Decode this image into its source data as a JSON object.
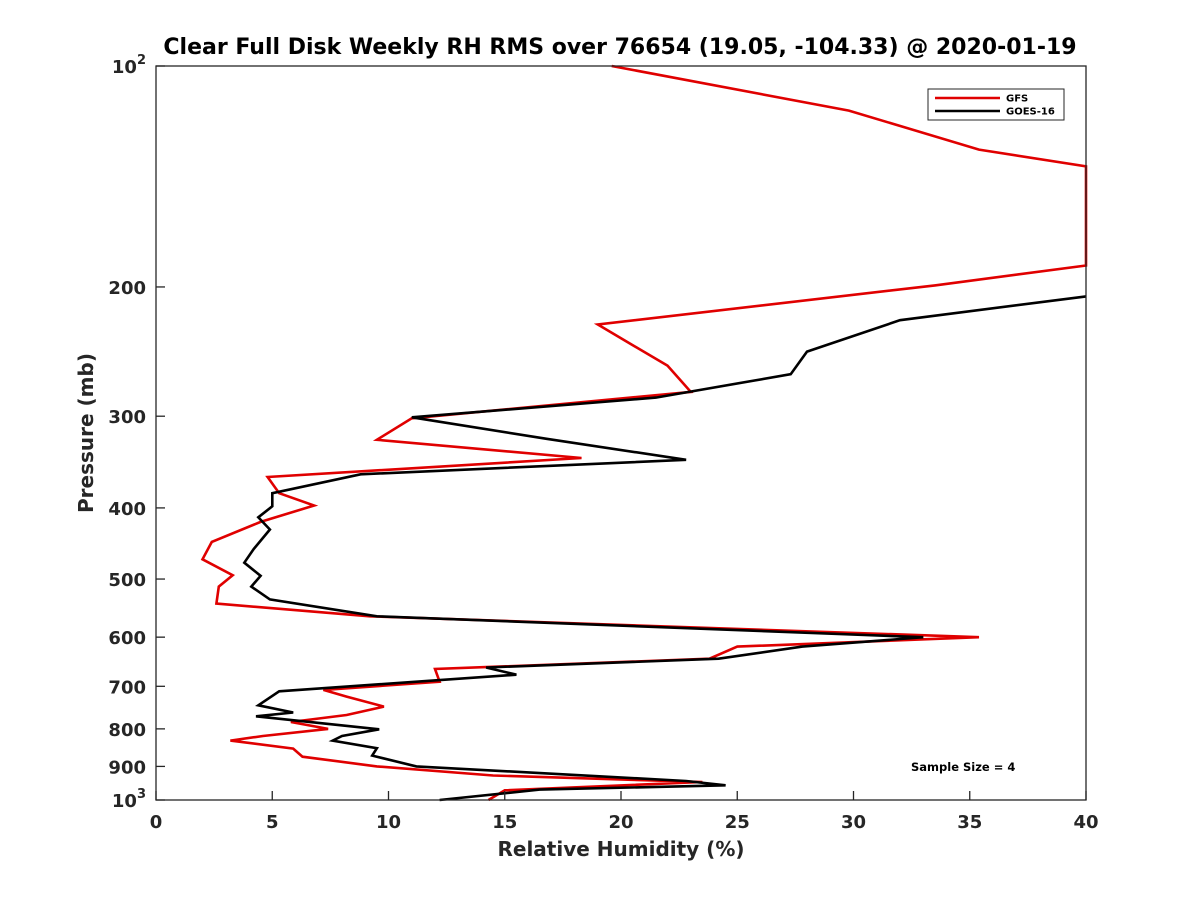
{
  "chart_data": {
    "type": "line",
    "title": "Clear Full Disk Weekly RH RMS over 76654 (19.05, -104.33) @ 2020-01-19",
    "xlabel": "Relative Humidity (%)",
    "ylabel": "Pressure (mb)",
    "xlim": [
      0,
      40
    ],
    "ylim": [
      100,
      1000
    ],
    "y_scale": "log",
    "y_reversed": true,
    "grid": false,
    "legend_position": "top-right",
    "x_ticks": [
      0,
      5,
      10,
      15,
      20,
      25,
      30,
      35,
      40
    ],
    "x_tick_labels": [
      "0",
      "5",
      "10",
      "15",
      "20",
      "25",
      "30",
      "35",
      "40"
    ],
    "y_ticks": [
      100,
      200,
      300,
      400,
      500,
      600,
      700,
      800,
      900,
      1000
    ],
    "y_tick_labels": [
      {
        "base": "10",
        "exp": "2"
      },
      {
        "base": "200",
        "exp": ""
      },
      {
        "base": "300",
        "exp": ""
      },
      {
        "base": "400",
        "exp": ""
      },
      {
        "base": "500",
        "exp": ""
      },
      {
        "base": "600",
        "exp": ""
      },
      {
        "base": "700",
        "exp": ""
      },
      {
        "base": "800",
        "exp": ""
      },
      {
        "base": "900",
        "exp": ""
      },
      {
        "base": "10",
        "exp": "3"
      }
    ],
    "annotation": "Sample Size = 4",
    "series": [
      {
        "name": "GFS",
        "color": "#e00000",
        "points": [
          [
            19.6,
            100
          ],
          [
            29.8,
            115
          ],
          [
            35.4,
            130
          ],
          [
            40.0,
            137
          ],
          [
            40.0,
            187
          ],
          [
            33.5,
            199
          ],
          [
            19.0,
            225
          ],
          [
            20.5,
            240
          ],
          [
            22.0,
            256
          ],
          [
            23.0,
            278
          ],
          [
            11.0,
            302
          ],
          [
            9.5,
            323
          ],
          [
            18.3,
            342
          ],
          [
            4.8,
            363
          ],
          [
            5.3,
            382
          ],
          [
            6.8,
            397
          ],
          [
            4.5,
            418
          ],
          [
            2.4,
            445
          ],
          [
            2.0,
            470
          ],
          [
            3.3,
            494
          ],
          [
            2.7,
            512
          ],
          [
            2.6,
            540
          ],
          [
            9.2,
            562
          ],
          [
            35.4,
            600
          ],
          [
            25.0,
            618
          ],
          [
            23.8,
            642
          ],
          [
            12.0,
            663
          ],
          [
            12.2,
            690
          ],
          [
            7.2,
            708
          ],
          [
            8.2,
            723
          ],
          [
            9.8,
            746
          ],
          [
            8.2,
            766
          ],
          [
            5.8,
            783
          ],
          [
            7.4,
            800
          ],
          [
            4.6,
            818
          ],
          [
            3.2,
            830
          ],
          [
            5.9,
            851
          ],
          [
            6.3,
            873
          ],
          [
            9.5,
            900
          ],
          [
            14.5,
            926
          ],
          [
            23.5,
            945
          ],
          [
            15.0,
            970
          ],
          [
            14.3,
            1000
          ]
        ]
      },
      {
        "name": "GOES-16",
        "color": "#000000",
        "points": [
          [
            40.0,
            206
          ],
          [
            32.0,
            222
          ],
          [
            28.0,
            245
          ],
          [
            27.3,
            263
          ],
          [
            21.5,
            283
          ],
          [
            11.0,
            301
          ],
          [
            16.8,
            322
          ],
          [
            22.8,
            344
          ],
          [
            8.8,
            360
          ],
          [
            5.0,
            382
          ],
          [
            5.0,
            398
          ],
          [
            4.4,
            412
          ],
          [
            4.9,
            428
          ],
          [
            4.2,
            455
          ],
          [
            3.8,
            475
          ],
          [
            4.5,
            495
          ],
          [
            4.1,
            512
          ],
          [
            4.9,
            533
          ],
          [
            9.5,
            562
          ],
          [
            33.0,
            600
          ],
          [
            27.8,
            618
          ],
          [
            24.2,
            642
          ],
          [
            14.2,
            660
          ],
          [
            15.5,
            675
          ],
          [
            5.3,
            711
          ],
          [
            4.4,
            743
          ],
          [
            5.9,
            760
          ],
          [
            4.3,
            769
          ],
          [
            9.6,
            801
          ],
          [
            8.0,
            818
          ],
          [
            7.6,
            830
          ],
          [
            9.5,
            850
          ],
          [
            9.3,
            870
          ],
          [
            11.2,
            900
          ],
          [
            22.8,
            942
          ],
          [
            24.5,
            955
          ],
          [
            16.5,
            968
          ],
          [
            12.2,
            1000
          ]
        ]
      }
    ]
  }
}
